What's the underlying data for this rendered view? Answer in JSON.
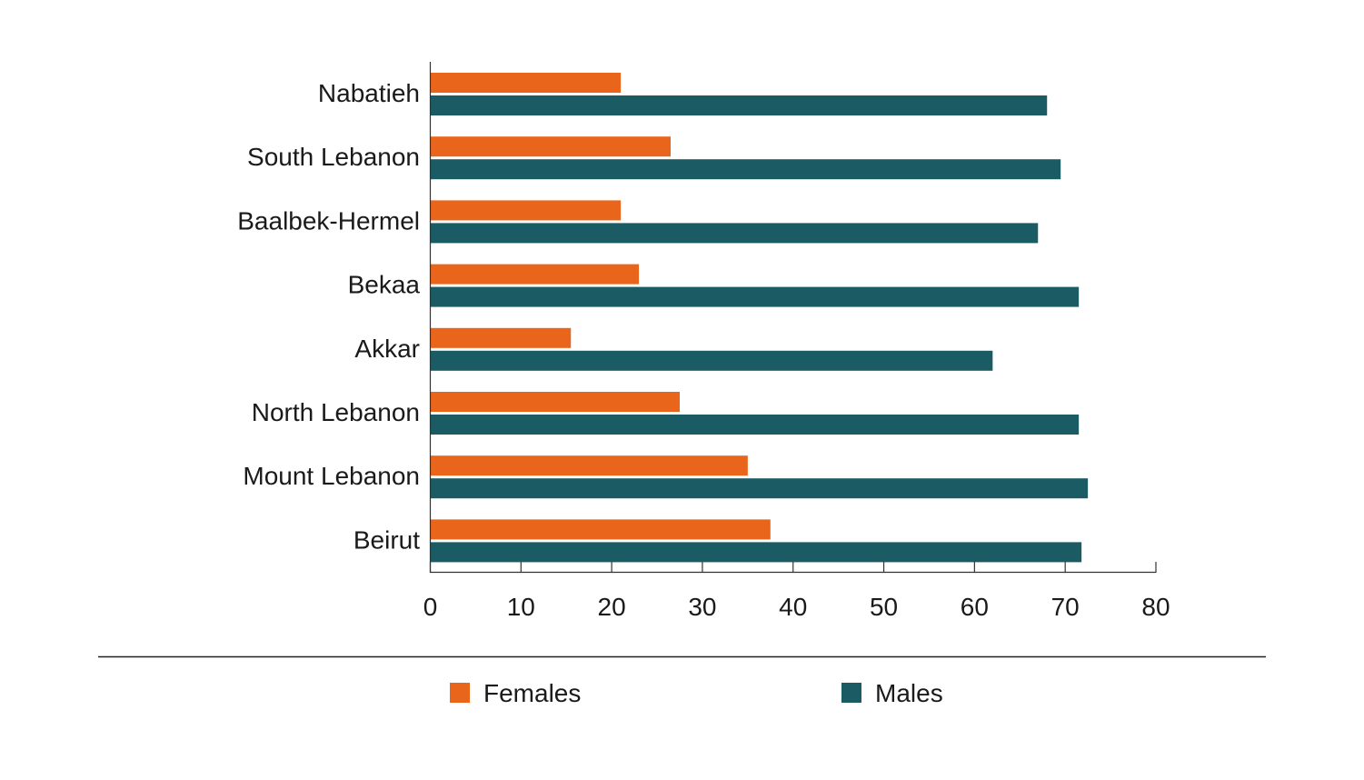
{
  "chart_data": {
    "type": "bar",
    "orientation": "horizontal",
    "categories": [
      "Nabatieh",
      "South Lebanon",
      "Baalbek-Hermel",
      "Bekaa",
      "Akkar",
      "North Lebanon",
      "Mount Lebanon",
      "Beirut"
    ],
    "series": [
      {
        "name": "Females",
        "color": "#e8651b",
        "values": [
          21,
          26.5,
          21,
          23,
          15.5,
          27.5,
          35,
          37.5
        ]
      },
      {
        "name": "Males",
        "color": "#1b5b63",
        "values": [
          68,
          69.5,
          67,
          71.5,
          62,
          71.5,
          72.5,
          71.8
        ]
      }
    ],
    "xticks": [
      "0",
      "10",
      "20",
      "30",
      "40",
      "50",
      "60",
      "70",
      "80"
    ],
    "xlim": [
      0,
      80
    ],
    "grid": false,
    "legend_position": "bottom"
  }
}
